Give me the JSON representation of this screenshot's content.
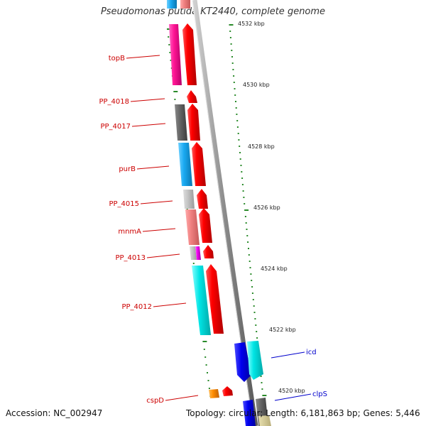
{
  "title": "Pseudomonas putida KT2440, complete genome",
  "footer": {
    "accession": "Accession: NC_002947",
    "summary": "Topology: circular; Length: 6,181,863 bp; Genes: 5,446"
  },
  "ruler": {
    "unit_labels": [
      "4532 kbp",
      "4530 kbp",
      "4528 kbp",
      "4526 kbp",
      "4524 kbp",
      "4522 kbp",
      "4520 kbp"
    ]
  },
  "genes": [
    {
      "name": "topB",
      "color": "#cc0000"
    },
    {
      "name": "PP_4018",
      "color": "#cc0000"
    },
    {
      "name": "PP_4017",
      "color": "#cc0000"
    },
    {
      "name": "purB",
      "color": "#cc0000"
    },
    {
      "name": "PP_4015",
      "color": "#cc0000"
    },
    {
      "name": "mnmA",
      "color": "#cc0000"
    },
    {
      "name": "PP_4013",
      "color": "#cc0000"
    },
    {
      "name": "PP_4012",
      "color": "#cc0000"
    },
    {
      "name": "cspD",
      "color": "#cc0000"
    },
    {
      "name": "icd",
      "color": "#0000cc"
    },
    {
      "name": "clpS",
      "color": "#0000cc"
    }
  ],
  "colors": {
    "forward_arrow": "#ee0000",
    "backbone": "#8c8c8c",
    "tick": "#2a8a2a",
    "reverse_strand_blue": "#0000dd",
    "reverse_strand_cyan": "#00dddd"
  }
}
